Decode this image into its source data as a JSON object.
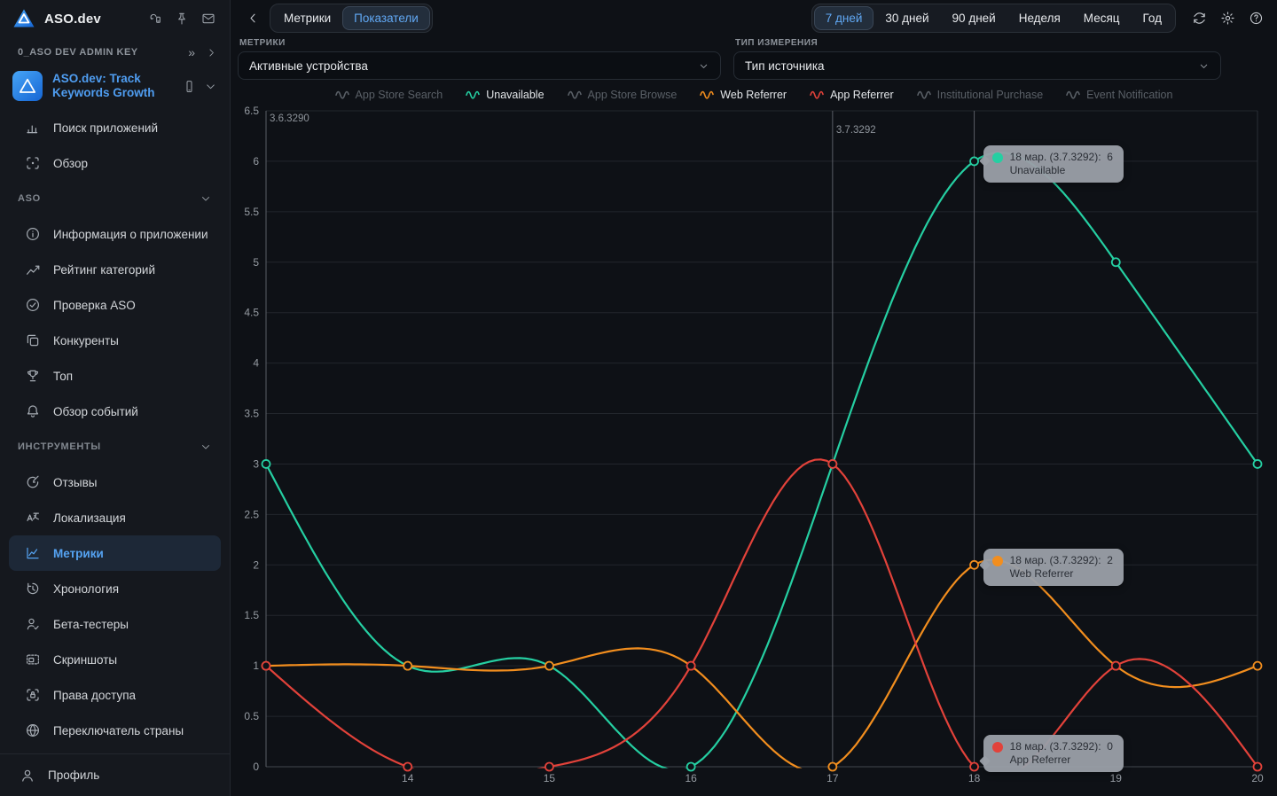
{
  "sidebar": {
    "app_title": "ASO.dev",
    "header_icons": [
      "device-sync",
      "pin",
      "mail"
    ],
    "admin_key_label": "0_ASO DEV ADMIN KEY",
    "app": {
      "name": "ASO.dev: Track Keywords Growth"
    },
    "groups": [
      {
        "header": null,
        "items": [
          {
            "label": "Поиск приложений",
            "icon": "bar-chart",
            "active": false
          },
          {
            "label": "Обзор",
            "icon": "scan",
            "active": false
          }
        ]
      },
      {
        "header": "ASO",
        "items": [
          {
            "label": "Информация о приложении",
            "icon": "info",
            "active": false
          },
          {
            "label": "Рейтинг категорий",
            "icon": "category-chart",
            "active": false
          },
          {
            "label": "Проверка ASO",
            "icon": "check-circle",
            "active": false
          },
          {
            "label": "Конкуренты",
            "icon": "competitors",
            "active": false
          },
          {
            "label": "Топ",
            "icon": "trophy",
            "active": false
          },
          {
            "label": "Обзор событий",
            "icon": "bell",
            "active": false
          }
        ]
      },
      {
        "header": "ИНСТРУМЕНТЫ",
        "items": [
          {
            "label": "Отзывы",
            "icon": "reviews",
            "active": false
          },
          {
            "label": "Локализация",
            "icon": "translate",
            "active": false
          },
          {
            "label": "Метрики",
            "icon": "metrics",
            "active": true
          },
          {
            "label": "Хронология",
            "icon": "history",
            "active": false
          },
          {
            "label": "Бета-тестеры",
            "icon": "beta-testers",
            "active": false
          },
          {
            "label": "Скриншоты",
            "icon": "screenshots",
            "active": false
          },
          {
            "label": "Права доступа",
            "icon": "permissions",
            "active": false
          },
          {
            "label": "Переключатель страны",
            "icon": "globe",
            "active": false
          }
        ]
      }
    ],
    "footer": {
      "label": "Профиль",
      "icon": "user"
    }
  },
  "topbar": {
    "view_tabs": [
      {
        "label": "Метрики",
        "active": false
      },
      {
        "label": "Показатели",
        "active": true
      }
    ],
    "ranges": [
      {
        "label": "7 дней",
        "active": true
      },
      {
        "label": "30 дней",
        "active": false
      },
      {
        "label": "90 дней",
        "active": false
      },
      {
        "label": "Неделя",
        "active": false
      },
      {
        "label": "Месяц",
        "active": false
      },
      {
        "label": "Год",
        "active": false
      }
    ],
    "icons": [
      "refresh",
      "gear",
      "help"
    ]
  },
  "filters": {
    "metric": {
      "label": "МЕТРИКИ",
      "value": "Активные устройства"
    },
    "measurement": {
      "label": "ТИП ИЗМЕРЕНИЯ",
      "value": "Тип источника"
    }
  },
  "chart_data": {
    "type": "line",
    "x": [
      13,
      14,
      15,
      16,
      17,
      18,
      19,
      20
    ],
    "x_ticks": [
      14,
      15,
      16,
      17,
      18,
      19,
      20
    ],
    "ylim": [
      0,
      6.5
    ],
    "y_tick_step": 0.5,
    "series": [
      {
        "name": "Unavailable",
        "color": "#25cfa2",
        "values": [
          3,
          1,
          1,
          0,
          3,
          6,
          5,
          3
        ]
      },
      {
        "name": "Web Referrer",
        "color": "#f28e1e",
        "values": [
          1,
          1,
          1,
          1,
          0,
          2,
          1,
          1
        ]
      },
      {
        "name": "App Referrer",
        "color": "#e2423a",
        "values": [
          1,
          0,
          0,
          1,
          3,
          0,
          1,
          0
        ]
      }
    ],
    "legend": [
      {
        "label": "App Store Search",
        "enabled": false,
        "color": null
      },
      {
        "label": "Unavailable",
        "enabled": true,
        "color": "#25cfa2"
      },
      {
        "label": "App Store Browse",
        "enabled": false,
        "color": null
      },
      {
        "label": "Web Referrer",
        "enabled": true,
        "color": "#f28e1e"
      },
      {
        "label": "App Referrer",
        "enabled": true,
        "color": "#e2423a"
      },
      {
        "label": "Institutional Purchase",
        "enabled": false,
        "color": null
      },
      {
        "label": "Event Notification",
        "enabled": false,
        "color": null
      }
    ],
    "release_markers": [
      {
        "x": 13,
        "label": "3.6.3290"
      },
      {
        "x": 17,
        "label": "3.7.3292"
      }
    ],
    "crosshair_x": 18,
    "tooltips": [
      {
        "series": "Unavailable",
        "date_label": "18 мар. (3.7.3292):",
        "value": 6
      },
      {
        "series": "Web Referrer",
        "date_label": "18 мар. (3.7.3292):",
        "value": 2
      },
      {
        "series": "App Referrer",
        "date_label": "18 мар. (3.7.3292):",
        "value": 0
      }
    ],
    "grid": true,
    "legend_position": "top"
  },
  "colors": {
    "accent_blue": "#4f9df1",
    "teal": "#25cfa2",
    "orange": "#f28e1e",
    "red": "#e2423a",
    "tooltip_bg": "#999ea7",
    "grid": "#22262c",
    "axis": "#41464d",
    "marker_line": "#5a5e66"
  }
}
